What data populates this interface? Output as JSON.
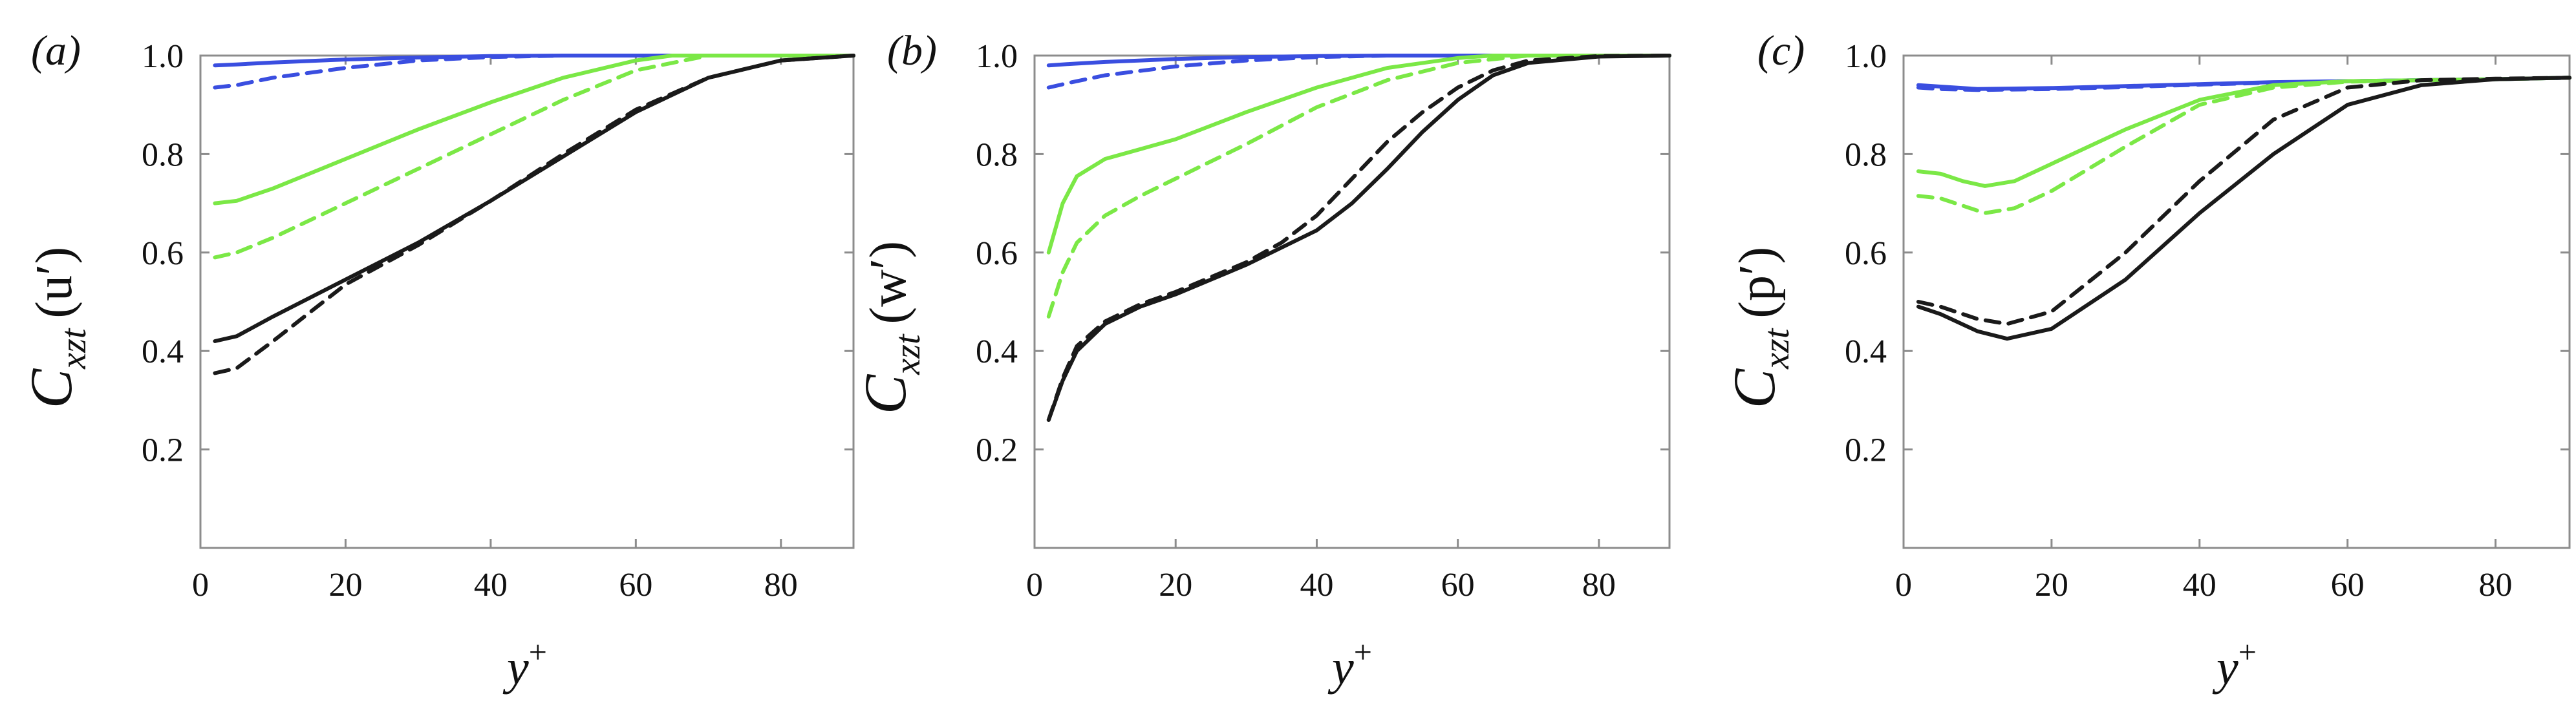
{
  "colors": {
    "blue": "#3a4ee0",
    "green": "#7be846",
    "black": "#1a1a1a"
  },
  "chart_data": [
    {
      "type": "line",
      "panel_label": "(a)",
      "ylabel_base": "C",
      "ylabel_sub": "xzt",
      "ylabel_var": "(u′)",
      "xlabel": "y+",
      "xlim": [
        0,
        90
      ],
      "ylim": [
        0,
        1.0
      ],
      "xticks": [
        "0",
        "20",
        "40",
        "60",
        "80"
      ],
      "yticks": [
        "0.2",
        "0.4",
        "0.6",
        "0.8",
        "1.0"
      ],
      "series": [
        {
          "color": "blue",
          "style": "solid",
          "x": [
            2,
            5,
            10,
            20,
            30,
            40,
            50,
            60,
            70,
            80,
            90
          ],
          "y": [
            0.98,
            0.982,
            0.986,
            0.992,
            0.996,
            0.999,
            1.0,
            1.0,
            1.0,
            1.0,
            1.0
          ]
        },
        {
          "color": "blue",
          "style": "dashed",
          "x": [
            2,
            5,
            10,
            20,
            30,
            40,
            50,
            60,
            70,
            80,
            90
          ],
          "y": [
            0.935,
            0.94,
            0.955,
            0.975,
            0.99,
            0.997,
            1.0,
            1.0,
            1.0,
            1.0,
            1.0
          ]
        },
        {
          "color": "green",
          "style": "solid",
          "x": [
            2,
            5,
            10,
            15,
            20,
            30,
            40,
            50,
            60,
            65,
            70,
            80,
            90
          ],
          "y": [
            0.7,
            0.705,
            0.73,
            0.76,
            0.79,
            0.85,
            0.905,
            0.955,
            0.99,
            1.0,
            1.0,
            1.0,
            1.0
          ]
        },
        {
          "color": "green",
          "style": "dashed",
          "x": [
            2,
            5,
            10,
            15,
            20,
            30,
            40,
            50,
            60,
            70,
            80,
            90
          ],
          "y": [
            0.59,
            0.6,
            0.63,
            0.665,
            0.7,
            0.77,
            0.84,
            0.91,
            0.97,
            1.0,
            1.0,
            1.0
          ]
        },
        {
          "color": "black",
          "style": "solid",
          "x": [
            2,
            5,
            10,
            20,
            30,
            40,
            50,
            60,
            70,
            80,
            90
          ],
          "y": [
            0.42,
            0.43,
            0.47,
            0.545,
            0.62,
            0.705,
            0.795,
            0.885,
            0.955,
            0.99,
            1.0
          ]
        },
        {
          "color": "black",
          "style": "dashed",
          "x": [
            2,
            5,
            10,
            20,
            30,
            40,
            50,
            60,
            70,
            80,
            90
          ],
          "y": [
            0.355,
            0.365,
            0.42,
            0.535,
            0.615,
            0.705,
            0.8,
            0.89,
            0.955,
            0.99,
            1.0
          ]
        }
      ]
    },
    {
      "type": "line",
      "panel_label": "(b)",
      "ylabel_base": "C",
      "ylabel_sub": "xzt",
      "ylabel_var": "(w′)",
      "xlabel": "y+",
      "xlim": [
        0,
        90
      ],
      "ylim": [
        0,
        1.0
      ],
      "xticks": [
        "0",
        "20",
        "40",
        "60",
        "80"
      ],
      "yticks": [
        "0.2",
        "0.4",
        "0.6",
        "0.8",
        "1.0"
      ],
      "series": [
        {
          "color": "blue",
          "style": "solid",
          "x": [
            2,
            5,
            10,
            20,
            30,
            40,
            50,
            60,
            70,
            80,
            90
          ],
          "y": [
            0.98,
            0.983,
            0.987,
            0.993,
            0.997,
            0.999,
            1.0,
            1.0,
            1.0,
            1.0,
            1.0
          ]
        },
        {
          "color": "blue",
          "style": "dashed",
          "x": [
            2,
            5,
            10,
            20,
            30,
            40,
            50,
            60,
            70,
            80,
            90
          ],
          "y": [
            0.935,
            0.945,
            0.96,
            0.978,
            0.99,
            0.997,
            1.0,
            1.0,
            1.0,
            1.0,
            1.0
          ]
        },
        {
          "color": "green",
          "style": "solid",
          "x": [
            2,
            4,
            6,
            10,
            15,
            20,
            30,
            40,
            50,
            60,
            65,
            70,
            80,
            90
          ],
          "y": [
            0.6,
            0.7,
            0.755,
            0.79,
            0.81,
            0.83,
            0.885,
            0.935,
            0.975,
            0.995,
            1.0,
            1.0,
            1.0,
            1.0
          ]
        },
        {
          "color": "green",
          "style": "dashed",
          "x": [
            2,
            4,
            6,
            10,
            15,
            20,
            30,
            40,
            50,
            60,
            70,
            80,
            90
          ],
          "y": [
            0.47,
            0.56,
            0.62,
            0.675,
            0.715,
            0.75,
            0.82,
            0.895,
            0.95,
            0.985,
            1.0,
            1.0,
            1.0
          ]
        },
        {
          "color": "black",
          "style": "solid",
          "x": [
            2,
            4,
            6,
            10,
            15,
            20,
            25,
            30,
            35,
            40,
            45,
            50,
            55,
            60,
            65,
            70,
            80,
            90
          ],
          "y": [
            0.26,
            0.34,
            0.4,
            0.455,
            0.49,
            0.515,
            0.545,
            0.575,
            0.61,
            0.645,
            0.7,
            0.77,
            0.845,
            0.91,
            0.96,
            0.985,
            0.998,
            1.0
          ]
        },
        {
          "color": "black",
          "style": "dashed",
          "x": [
            2,
            4,
            6,
            10,
            15,
            20,
            25,
            30,
            35,
            40,
            45,
            50,
            55,
            60,
            65,
            70,
            80,
            90
          ],
          "y": [
            0.26,
            0.345,
            0.41,
            0.46,
            0.495,
            0.52,
            0.55,
            0.58,
            0.62,
            0.675,
            0.75,
            0.825,
            0.885,
            0.935,
            0.97,
            0.99,
            0.999,
            1.0
          ]
        }
      ]
    },
    {
      "type": "line",
      "panel_label": "(c)",
      "ylabel_base": "C",
      "ylabel_sub": "xzt",
      "ylabel_var": "(p′)",
      "xlabel": "y+",
      "xlim": [
        0,
        90
      ],
      "ylim": [
        0,
        1.0
      ],
      "xticks": [
        "0",
        "20",
        "40",
        "60",
        "80"
      ],
      "yticks": [
        "0.2",
        "0.4",
        "0.6",
        "0.8",
        "1.0"
      ],
      "series": [
        {
          "color": "blue",
          "style": "solid",
          "x": [
            2,
            5,
            10,
            20,
            30,
            40,
            50,
            60,
            70,
            80,
            90
          ],
          "y": [
            0.94,
            0.937,
            0.932,
            0.934,
            0.938,
            0.942,
            0.946,
            0.948,
            0.95,
            0.952,
            0.955
          ]
        },
        {
          "color": "blue",
          "style": "dashed",
          "x": [
            2,
            5,
            10,
            20,
            30,
            40,
            50,
            60,
            70,
            80,
            90
          ],
          "y": [
            0.935,
            0.932,
            0.93,
            0.932,
            0.936,
            0.941,
            0.945,
            0.948,
            0.95,
            0.952,
            0.955
          ]
        },
        {
          "color": "green",
          "style": "solid",
          "x": [
            2,
            5,
            8,
            11,
            15,
            20,
            30,
            40,
            50,
            60,
            70,
            80,
            90
          ],
          "y": [
            0.765,
            0.76,
            0.745,
            0.735,
            0.745,
            0.78,
            0.85,
            0.91,
            0.94,
            0.948,
            0.95,
            0.952,
            0.955
          ]
        },
        {
          "color": "green",
          "style": "dashed",
          "x": [
            2,
            5,
            8,
            11,
            15,
            20,
            30,
            40,
            50,
            60,
            70,
            80,
            90
          ],
          "y": [
            0.715,
            0.71,
            0.695,
            0.68,
            0.69,
            0.725,
            0.815,
            0.9,
            0.935,
            0.947,
            0.95,
            0.952,
            0.955
          ]
        },
        {
          "color": "black",
          "style": "solid",
          "x": [
            2,
            5,
            10,
            14,
            20,
            30,
            40,
            50,
            60,
            70,
            80,
            90
          ],
          "y": [
            0.49,
            0.475,
            0.44,
            0.425,
            0.445,
            0.545,
            0.68,
            0.8,
            0.9,
            0.94,
            0.952,
            0.955
          ]
        },
        {
          "color": "black",
          "style": "dashed",
          "x": [
            2,
            5,
            10,
            14,
            20,
            30,
            40,
            50,
            60,
            70,
            80,
            90
          ],
          "y": [
            0.5,
            0.49,
            0.465,
            0.455,
            0.48,
            0.6,
            0.745,
            0.87,
            0.935,
            0.95,
            0.953,
            0.955
          ]
        }
      ]
    }
  ]
}
